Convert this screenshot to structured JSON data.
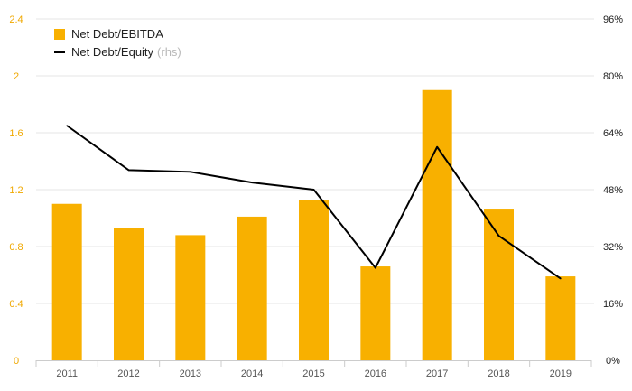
{
  "chart_data": {
    "type": "bar",
    "categories": [
      "2011",
      "2012",
      "2013",
      "2014",
      "2015",
      "2016",
      "2017",
      "2018",
      "2019"
    ],
    "series": [
      {
        "name": "Net Debt/EBITDA",
        "type": "bar",
        "axis": "left",
        "color": "#f8b000",
        "values": [
          1.1,
          0.93,
          0.88,
          1.01,
          1.13,
          0.66,
          1.9,
          1.06,
          0.59
        ]
      },
      {
        "name": "Net Debt/Equity",
        "name_note": "(rhs)",
        "type": "line",
        "axis": "right",
        "color": "#000000",
        "values": [
          66,
          53.5,
          53,
          50,
          48,
          26,
          60,
          35,
          23
        ]
      }
    ],
    "y_left": {
      "ylim": [
        0,
        2.4
      ],
      "ticks": [
        "0",
        "0.4",
        "0.8",
        "1.2",
        "1.6",
        "2",
        "2.4"
      ]
    },
    "y_right": {
      "ylim": [
        0,
        96
      ],
      "ticks": [
        "0%",
        "16%",
        "32%",
        "48%",
        "64%",
        "80%",
        "96%"
      ]
    },
    "legend_position": "top-left",
    "grid": true
  }
}
